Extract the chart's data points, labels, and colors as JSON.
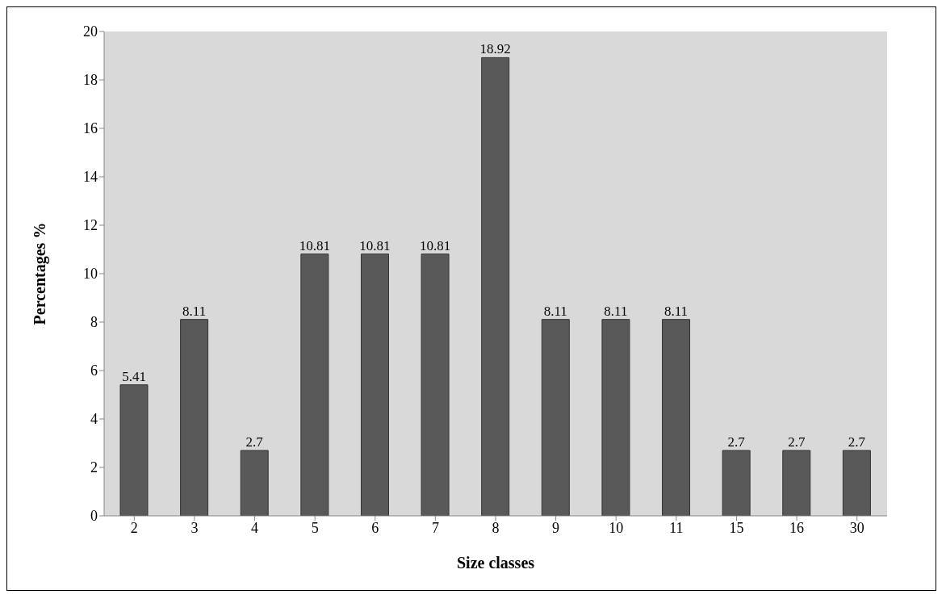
{
  "chart_data": {
    "type": "bar",
    "xlabel": "Size classes",
    "ylabel": "Percentages %",
    "categories": [
      "2",
      "3",
      "4",
      "5",
      "6",
      "7",
      "8",
      "9",
      "10",
      "11",
      "15",
      "16",
      "30"
    ],
    "values": [
      5.41,
      8.11,
      2.7,
      10.81,
      10.81,
      10.81,
      18.92,
      8.11,
      8.11,
      8.11,
      2.7,
      2.7,
      2.7
    ],
    "color": "#595959",
    "data_labels": true,
    "ylim": [
      0,
      20
    ],
    "yticks": [
      0,
      2,
      4,
      6,
      8,
      10,
      12,
      14,
      16,
      18,
      20
    ],
    "grid": false
  }
}
